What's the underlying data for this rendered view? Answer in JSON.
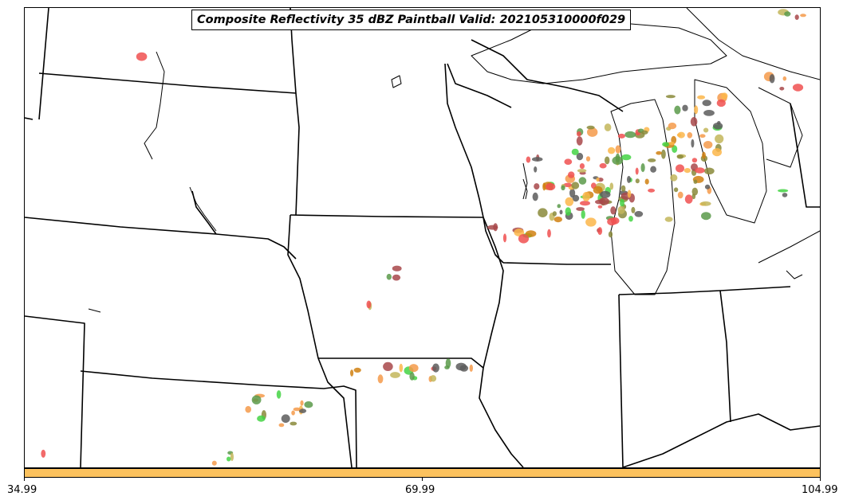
{
  "title": "Composite Reflectivity 35 dBZ Paintball Valid: 202105310000f029",
  "colorbar": {
    "color": "#fcc25e",
    "ticks": [
      "34.99",
      "69.99",
      "104.99"
    ]
  },
  "member_colors": [
    "#f05050",
    "#f59a4a",
    "#fbb64a",
    "#c3b65a",
    "#8a8a3a",
    "#44d444",
    "#5a9a4a",
    "#a8484a",
    "#d08010",
    "#5c5c5c"
  ],
  "boundary_color": "#000000"
}
